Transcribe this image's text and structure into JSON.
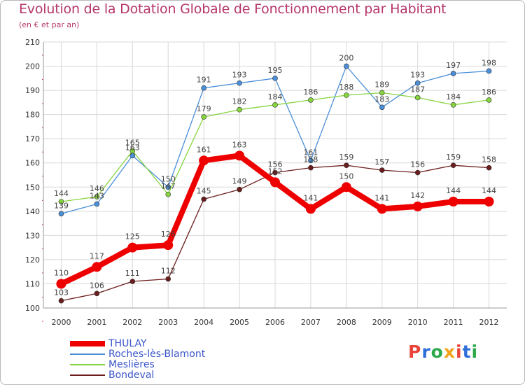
{
  "header": {
    "title": "Evolution de la Dotation Globale de Fonctionnement par Habitant",
    "subtitle": "(en € et par an)"
  },
  "logo": {
    "text": "Proxiti",
    "colors": [
      "#e8443a",
      "#2e6fd8",
      "#2aa84a",
      "#f2a21b"
    ]
  },
  "chart_data": {
    "type": "line",
    "title": "Evolution de la Dotation Globale de Fonctionnement par Habitant",
    "subtitle": "(en € et par an)",
    "x": [
      "2000",
      "2001",
      "2002",
      "2003",
      "2004",
      "2005",
      "2006",
      "2007",
      "2008",
      "2009",
      "2010",
      "2011",
      "2012"
    ],
    "ylim": [
      100,
      210
    ],
    "yticks": [
      100,
      110,
      120,
      130,
      140,
      150,
      160,
      170,
      180,
      190,
      200,
      210
    ],
    "grid": true,
    "legend_position": "bottom-left",
    "series": [
      {
        "name": "Roches-lès-Blamont",
        "color": "#4a8fd8",
        "values": [
          139,
          143,
          163,
          150,
          191,
          193,
          195,
          161,
          200,
          183,
          193,
          197,
          198
        ]
      },
      {
        "name": "Meslières",
        "color": "#86d43e",
        "values": [
          144,
          146,
          165,
          147,
          179,
          182,
          184,
          186,
          188,
          189,
          187,
          184,
          186
        ]
      },
      {
        "name": "Bondeval",
        "color": "#6b1c1c",
        "values": [
          103,
          106,
          111,
          112,
          145,
          149,
          156,
          158,
          159,
          157,
          156,
          159,
          158
        ]
      },
      {
        "name": "THULAY",
        "color": "#ee0000",
        "values": [
          110,
          117,
          125,
          126,
          161,
          163,
          152,
          141,
          150,
          141,
          142,
          144,
          144
        ]
      }
    ],
    "legend_order": [
      "THULAY",
      "Roches-lès-Blamont",
      "Meslières",
      "Bondeval"
    ]
  }
}
